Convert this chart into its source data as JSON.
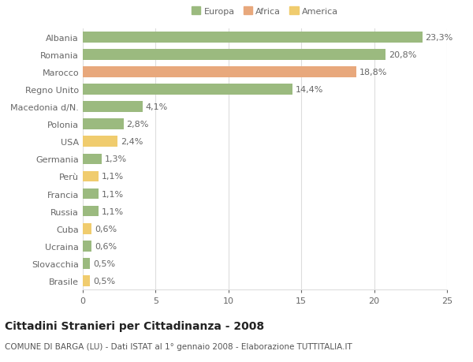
{
  "categories": [
    "Albania",
    "Romania",
    "Marocco",
    "Regno Unito",
    "Macedonia d/N.",
    "Polonia",
    "USA",
    "Germania",
    "Perù",
    "Francia",
    "Russia",
    "Cuba",
    "Ucraina",
    "Slovacchia",
    "Brasile"
  ],
  "values": [
    23.3,
    20.8,
    18.8,
    14.4,
    4.1,
    2.8,
    2.4,
    1.3,
    1.1,
    1.1,
    1.1,
    0.6,
    0.6,
    0.5,
    0.5
  ],
  "labels": [
    "23,3%",
    "20,8%",
    "18,8%",
    "14,4%",
    "4,1%",
    "2,8%",
    "2,4%",
    "1,3%",
    "1,1%",
    "1,1%",
    "1,1%",
    "0,6%",
    "0,6%",
    "0,5%",
    "0,5%"
  ],
  "continents": [
    "Europa",
    "Europa",
    "Africa",
    "Europa",
    "Europa",
    "Europa",
    "America",
    "Europa",
    "America",
    "Europa",
    "Europa",
    "America",
    "Europa",
    "Europa",
    "America"
  ],
  "colors": {
    "Europa": "#9bba7f",
    "Africa": "#e8a87c",
    "America": "#f0cc6e"
  },
  "legend_labels": [
    "Europa",
    "Africa",
    "America"
  ],
  "legend_colors": [
    "#9bba7f",
    "#e8a87c",
    "#f0cc6e"
  ],
  "title_bold": "Cittadini Stranieri per Cittadinanza - 2008",
  "subtitle": "COMUNE DI BARGA (LU) - Dati ISTAT al 1° gennaio 2008 - Elaborazione TUTTITALIA.IT",
  "xlim": [
    0,
    25
  ],
  "xticks": [
    0,
    5,
    10,
    15,
    20,
    25
  ],
  "background_color": "#ffffff",
  "grid_color": "#dddddd",
  "bar_height": 0.62,
  "label_fontsize": 8.0,
  "tick_fontsize": 8.0,
  "title_fontsize": 10,
  "subtitle_fontsize": 7.5
}
